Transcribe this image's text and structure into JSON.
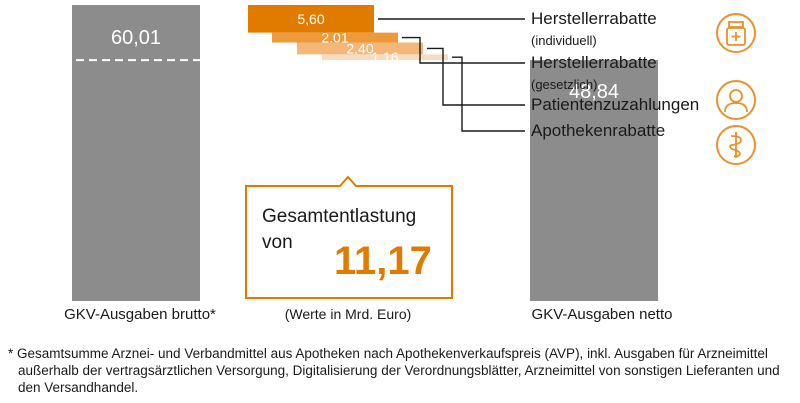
{
  "chart_data": {
    "type": "bar",
    "unit_note": "(Werte in Mrd. Euro)",
    "gross": {
      "label": "GKV-Ausgaben brutto*",
      "value": 60.01,
      "value_label": "60,01"
    },
    "net": {
      "label": "GKV-Ausgaben netto",
      "value": 48.84,
      "value_label": "48,84"
    },
    "reductions": [
      {
        "title": "Herstellerrabatte",
        "subtitle": "(individuell)",
        "value": 5.6,
        "value_label": "5,60",
        "color": "#e07b00",
        "icon": "medicine-bottle-icon"
      },
      {
        "title": "Herstellerrabatte",
        "subtitle": "(gesetzlich)",
        "value": 2.01,
        "value_label": "2,01",
        "color": "#ec9a3a",
        "icon": ""
      },
      {
        "title": "Patientenzuzahlungen",
        "subtitle": "",
        "value": 2.4,
        "value_label": "2,40",
        "color": "#f4b779",
        "icon": "person-icon"
      },
      {
        "title": "Apothekenrabatte",
        "subtitle": "",
        "value": 1.16,
        "value_label": "1,16",
        "color": "#f9dcc0",
        "icon": "caduceus-icon"
      }
    ],
    "total": {
      "line1": "Gesamtentlastung",
      "line2": "von",
      "value": 11.17,
      "value_label": "11,17"
    }
  },
  "colors": {
    "gray_bar": "#8c8c8c",
    "orange": "#e07b00",
    "icon_orange": "#e8922e"
  },
  "footnote": {
    "line1": "* Gesamtsumme Arznei- und Verbandmittel aus Apotheken nach Apothekenverkaufspreis (AVP), inkl. Ausgaben für Arzneimittel",
    "line2": "außerhalb der vertragsärztlichen Versorgung, Digitalisierung der Verordnungsblätter, Arzneimittel von sonstigen Lieferanten und",
    "line3": "den Versandhandel."
  }
}
